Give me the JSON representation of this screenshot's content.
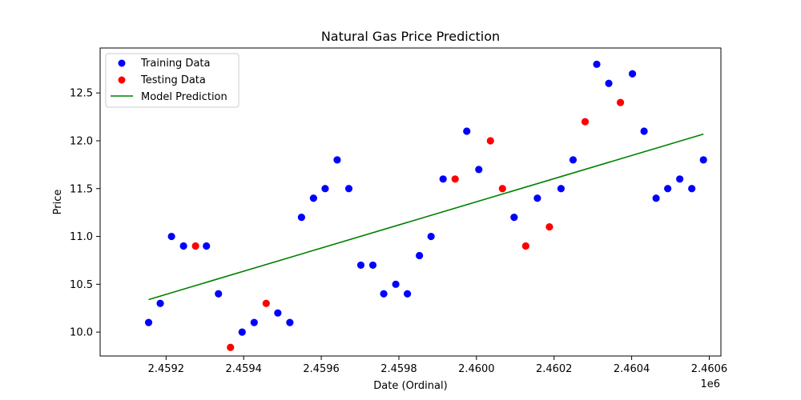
{
  "chart_data": {
    "type": "scatter",
    "title": "Natural Gas Price Prediction",
    "xlabel": "Date (Ordinal)",
    "ylabel": "Price",
    "x_offset_label": "1e6",
    "xlim": [
      2.45903,
      2.46063
    ],
    "ylim": [
      9.75,
      12.97
    ],
    "x_ticks": [
      2.4592,
      2.4594,
      2.4596,
      2.4598,
      2.46,
      2.4602,
      2.4604,
      2.4606
    ],
    "x_tick_labels": [
      "2.4592",
      "2.4594",
      "2.4596",
      "2.4598",
      "2.4600",
      "2.4602",
      "2.4604",
      "2.4606"
    ],
    "y_ticks": [
      10.0,
      10.5,
      11.0,
      11.5,
      12.0,
      12.5
    ],
    "y_tick_labels": [
      "10.0",
      "10.5",
      "11.0",
      "11.5",
      "12.0",
      "12.5"
    ],
    "grid": false,
    "legend_position": "top-left",
    "series": [
      {
        "name": "Training Data",
        "kind": "scatter",
        "color": "#0000ff",
        "points": [
          [
            2.459155,
            10.1
          ],
          [
            2.459185,
            10.3
          ],
          [
            2.459214,
            11.0
          ],
          [
            2.459245,
            10.9
          ],
          [
            2.459304,
            10.9
          ],
          [
            2.459335,
            10.4
          ],
          [
            2.459396,
            10.0
          ],
          [
            2.459427,
            10.1
          ],
          [
            2.459488,
            10.2
          ],
          [
            2.459519,
            10.1
          ],
          [
            2.459549,
            11.2
          ],
          [
            2.45958,
            11.4
          ],
          [
            2.45961,
            11.5
          ],
          [
            2.459641,
            11.8
          ],
          [
            2.459671,
            11.5
          ],
          [
            2.459702,
            10.7
          ],
          [
            2.459733,
            10.7
          ],
          [
            2.459761,
            10.4
          ],
          [
            2.459792,
            10.5
          ],
          [
            2.459822,
            10.4
          ],
          [
            2.459853,
            10.8
          ],
          [
            2.459883,
            11.0
          ],
          [
            2.459914,
            11.6
          ],
          [
            2.459975,
            12.1
          ],
          [
            2.460006,
            11.7
          ],
          [
            2.460097,
            11.2
          ],
          [
            2.460157,
            11.4
          ],
          [
            2.460218,
            11.5
          ],
          [
            2.460249,
            11.8
          ],
          [
            2.46031,
            12.8
          ],
          [
            2.460341,
            12.6
          ],
          [
            2.460402,
            12.7
          ],
          [
            2.460432,
            12.1
          ],
          [
            2.460463,
            11.4
          ],
          [
            2.460493,
            11.5
          ],
          [
            2.460524,
            11.6
          ],
          [
            2.460555,
            11.5
          ],
          [
            2.460585,
            11.8
          ]
        ]
      },
      {
        "name": "Testing Data",
        "kind": "scatter",
        "color": "#ff0000",
        "points": [
          [
            2.459276,
            10.9
          ],
          [
            2.459366,
            9.84
          ],
          [
            2.459458,
            10.3
          ],
          [
            2.459945,
            11.6
          ],
          [
            2.460036,
            12.0
          ],
          [
            2.460067,
            11.5
          ],
          [
            2.460127,
            10.9
          ],
          [
            2.460188,
            11.1
          ],
          [
            2.46028,
            12.2
          ],
          [
            2.460371,
            12.4
          ]
        ]
      },
      {
        "name": "Model Prediction",
        "kind": "line",
        "color": "#008000",
        "points": [
          [
            2.459155,
            10.34
          ],
          [
            2.460585,
            12.07
          ]
        ]
      }
    ]
  }
}
